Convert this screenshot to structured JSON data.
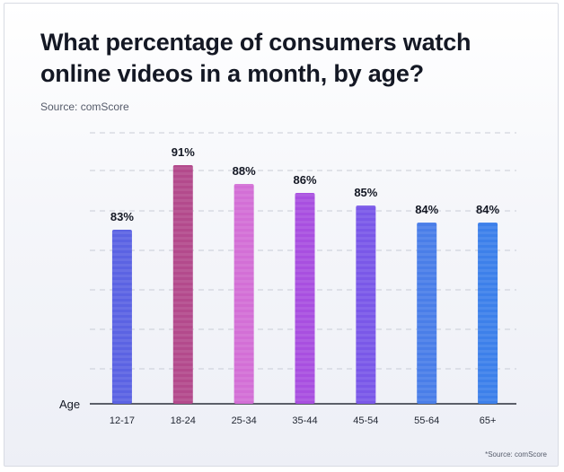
{
  "chart_data": {
    "type": "bar",
    "title": "What percentage of consumers watch online videos in a month, by age?",
    "source": "Source: comScore",
    "footnote": "*Source: comScore",
    "xlabel": "Age",
    "ylabel": "",
    "ylim": [
      0,
      100
    ],
    "grid": true,
    "categories": [
      "12-17",
      "18-24",
      "25-34",
      "35-44",
      "45-54",
      "55-64",
      "65+"
    ],
    "values": [
      83,
      91,
      88,
      86,
      85,
      84,
      84
    ],
    "value_labels": [
      "83%",
      "91%",
      "88%",
      "86%",
      "85%",
      "84%",
      "84%"
    ],
    "colors": [
      "#5b63e3",
      "#b34a8c",
      "#d36fd6",
      "#a84fe0",
      "#7a58e8",
      "#4a7ee8",
      "#3d80ea"
    ]
  }
}
